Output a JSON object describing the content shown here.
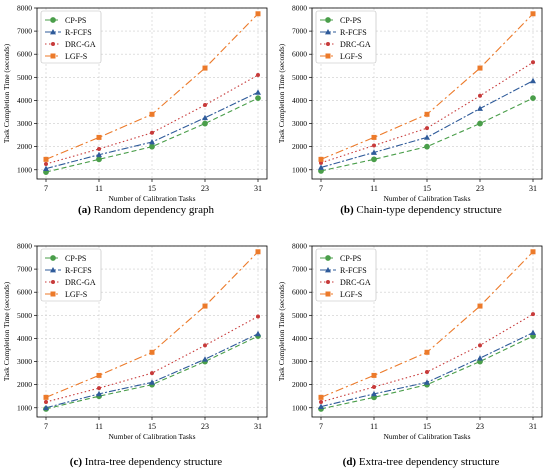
{
  "chart_data": [
    {
      "type": "line",
      "panel_label": "(a)",
      "caption": "Random dependency graph",
      "xlabel": "Number of Calibration Tasks",
      "ylabel": "Task Completion Time (seconds)",
      "categories": [
        "7",
        "11",
        "15",
        "23",
        "31"
      ],
      "ylim": [
        600,
        8000
      ],
      "yticks": [
        1000,
        2000,
        3000,
        4000,
        5000,
        6000,
        7000,
        8000
      ],
      "grid": true,
      "legend": "top-left",
      "series": [
        {
          "name": "CP-PS",
          "values": [
            900,
            1450,
            2000,
            3000,
            4100
          ]
        },
        {
          "name": "R-FCFS",
          "values": [
            1050,
            1650,
            2200,
            3250,
            4350
          ]
        },
        {
          "name": "DRC-GA",
          "values": [
            1250,
            1900,
            2600,
            3800,
            5100
          ]
        },
        {
          "name": "LGF-S",
          "values": [
            1450,
            2400,
            3400,
            5400,
            7750
          ]
        }
      ]
    },
    {
      "type": "line",
      "panel_label": "(b)",
      "caption": "Chain-type dependency structure",
      "xlabel": "Number of Calibration Tasks",
      "ylabel": "Task Completion Time (seconds)",
      "categories": [
        "7",
        "11",
        "15",
        "23",
        "31"
      ],
      "ylim": [
        600,
        8000
      ],
      "yticks": [
        1000,
        2000,
        3000,
        4000,
        5000,
        6000,
        7000,
        8000
      ],
      "grid": true,
      "legend": "top-left",
      "series": [
        {
          "name": "CP-PS",
          "values": [
            950,
            1450,
            2000,
            3000,
            4100
          ]
        },
        {
          "name": "R-FCFS",
          "values": [
            1100,
            1750,
            2400,
            3650,
            4850
          ]
        },
        {
          "name": "DRC-GA",
          "values": [
            1300,
            2050,
            2800,
            4200,
            5650
          ]
        },
        {
          "name": "LGF-S",
          "values": [
            1450,
            2400,
            3400,
            5400,
            7750
          ]
        }
      ]
    },
    {
      "type": "line",
      "panel_label": "(c)",
      "caption": "Intra-tree dependency structure",
      "xlabel": "Number of Calibration Tasks",
      "ylabel": "Task Completion Time (seconds)",
      "categories": [
        "7",
        "11",
        "15",
        "23",
        "31"
      ],
      "ylim": [
        600,
        8000
      ],
      "yticks": [
        1000,
        2000,
        3000,
        4000,
        5000,
        6000,
        7000,
        8000
      ],
      "grid": true,
      "legend": "top-left",
      "series": [
        {
          "name": "CP-PS",
          "values": [
            950,
            1500,
            2000,
            3000,
            4100
          ]
        },
        {
          "name": "R-FCFS",
          "values": [
            1000,
            1600,
            2100,
            3100,
            4200
          ]
        },
        {
          "name": "DRC-GA",
          "values": [
            1250,
            1850,
            2500,
            3700,
            4950
          ]
        },
        {
          "name": "LGF-S",
          "values": [
            1450,
            2400,
            3400,
            5400,
            7750
          ]
        }
      ]
    },
    {
      "type": "line",
      "panel_label": "(d)",
      "caption": "Extra-tree dependency structure",
      "xlabel": "Number of Calibration Tasks",
      "ylabel": "Task Completion Time (seconds)",
      "categories": [
        "7",
        "11",
        "15",
        "23",
        "31"
      ],
      "ylim": [
        600,
        8000
      ],
      "yticks": [
        1000,
        2000,
        3000,
        4000,
        5000,
        6000,
        7000,
        8000
      ],
      "grid": true,
      "legend": "top-left",
      "series": [
        {
          "name": "CP-PS",
          "values": [
            950,
            1450,
            2000,
            3000,
            4100
          ]
        },
        {
          "name": "R-FCFS",
          "values": [
            1050,
            1600,
            2100,
            3150,
            4250
          ]
        },
        {
          "name": "DRC-GA",
          "values": [
            1250,
            1900,
            2550,
            3700,
            5050
          ]
        },
        {
          "name": "LGF-S",
          "values": [
            1450,
            2400,
            3400,
            5400,
            7750
          ]
        }
      ]
    }
  ],
  "series_style": {
    "CP-PS": {
      "color": "#4a9e4a",
      "marker": "circle"
    },
    "R-FCFS": {
      "color": "#2f5b9a",
      "marker": "triangle"
    },
    "DRC-GA": {
      "color": "#c73a3a",
      "marker": "dot"
    },
    "LGF-S": {
      "color": "#ec7a2a",
      "marker": "square"
    }
  }
}
